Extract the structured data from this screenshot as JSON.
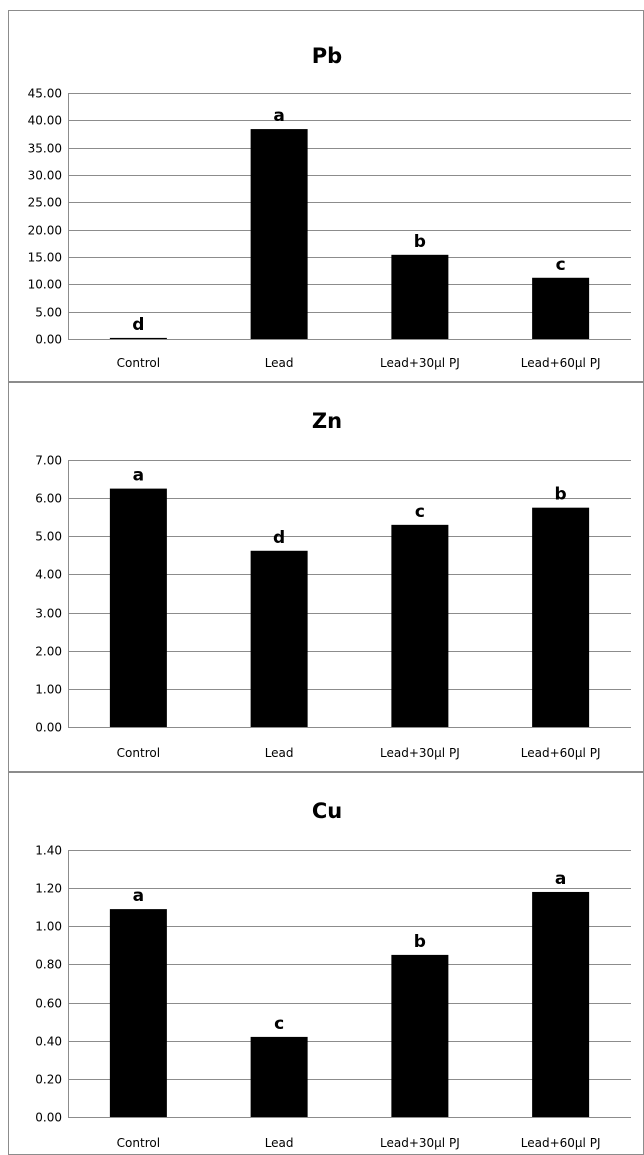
{
  "chart_data": [
    {
      "type": "bar",
      "title": "Pb",
      "categories": [
        "Control",
        "Lead",
        "Lead+30µl PJ",
        "Lead+60µl PJ"
      ],
      "values": [
        0.2,
        38.4,
        15.4,
        11.2
      ],
      "labels": [
        "d",
        "a",
        "b",
        "c"
      ],
      "yticks": [
        "0.00",
        "5.00",
        "10.00",
        "15.00",
        "20.00",
        "25.00",
        "30.00",
        "35.00",
        "40.00",
        "45.00"
      ],
      "ylim": [
        0,
        45
      ],
      "grid": true,
      "color": "#000000"
    },
    {
      "type": "bar",
      "title": "Zn",
      "categories": [
        "Control",
        "Lead",
        "Lead+30µl PJ",
        "Lead+60µl PJ"
      ],
      "values": [
        6.25,
        4.62,
        5.3,
        5.75
      ],
      "labels": [
        "a",
        "d",
        "c",
        "b"
      ],
      "yticks": [
        "0.00",
        "1.00",
        "2.00",
        "3.00",
        "4.00",
        "5.00",
        "6.00",
        "7.00"
      ],
      "ylim": [
        0,
        7
      ],
      "grid": true,
      "color": "#000000"
    },
    {
      "type": "bar",
      "title": "Cu",
      "categories": [
        "Control",
        "Lead",
        "Lead+30µl PJ",
        "Lead+60µl PJ"
      ],
      "values": [
        1.09,
        0.42,
        0.85,
        1.18
      ],
      "labels": [
        "a",
        "c",
        "b",
        "a"
      ],
      "yticks": [
        "0.00",
        "0.20",
        "0.40",
        "0.60",
        "0.80",
        "1.00",
        "1.20",
        "1.40"
      ],
      "ylim": [
        0,
        1.4
      ],
      "grid": true,
      "color": "#000000"
    }
  ]
}
